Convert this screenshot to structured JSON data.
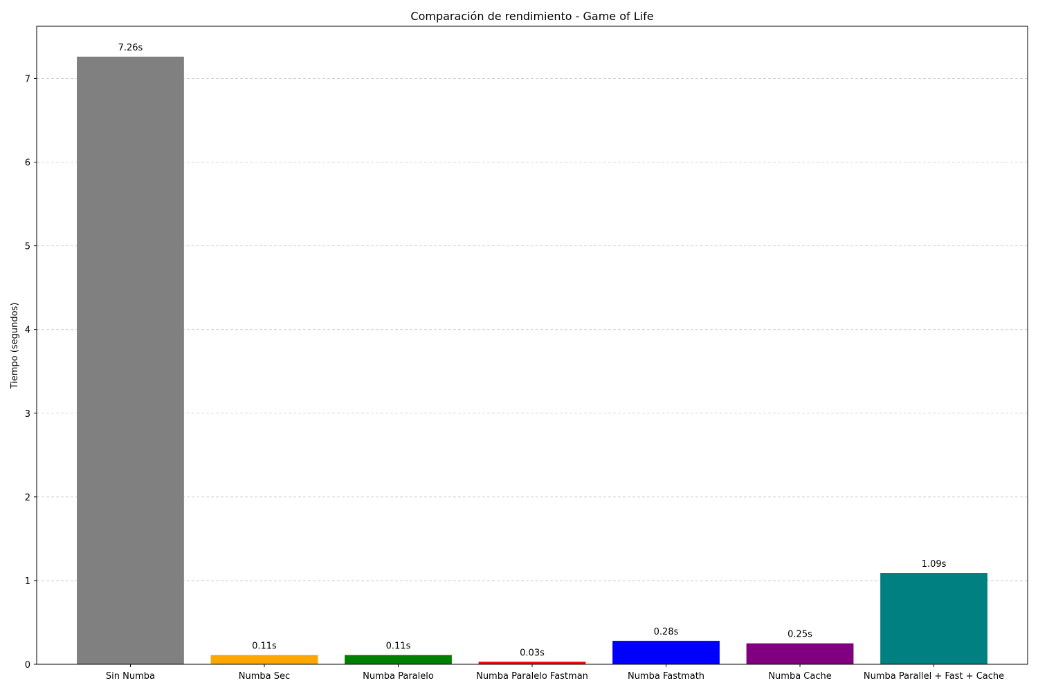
{
  "chart_data": {
    "type": "bar",
    "title": "Comparación de rendimiento - Game of Life",
    "xlabel": "",
    "ylabel": "Tiempo (segundos)",
    "categories": [
      "Sin Numba",
      "Numba Sec",
      "Numba Paralelo",
      "Numba Paralelo Fastman",
      "Numba Fastmath",
      "Numba Cache",
      "Numba Parallel + Fast + Cache"
    ],
    "values": [
      7.26,
      0.11,
      0.11,
      0.03,
      0.28,
      0.25,
      1.09
    ],
    "data_labels": [
      "7.26s",
      "0.11s",
      "0.11s",
      "0.03s",
      "0.28s",
      "0.25s",
      "1.09s"
    ],
    "colors": [
      "#808080",
      "#ffa500",
      "#008000",
      "#ff0000",
      "#0000ff",
      "#800080",
      "#008080"
    ],
    "ylim": [
      0,
      7.623
    ],
    "yticks": [
      0,
      1,
      2,
      3,
      4,
      5,
      6,
      7
    ],
    "grid": "y-dashed",
    "legend": "none"
  }
}
